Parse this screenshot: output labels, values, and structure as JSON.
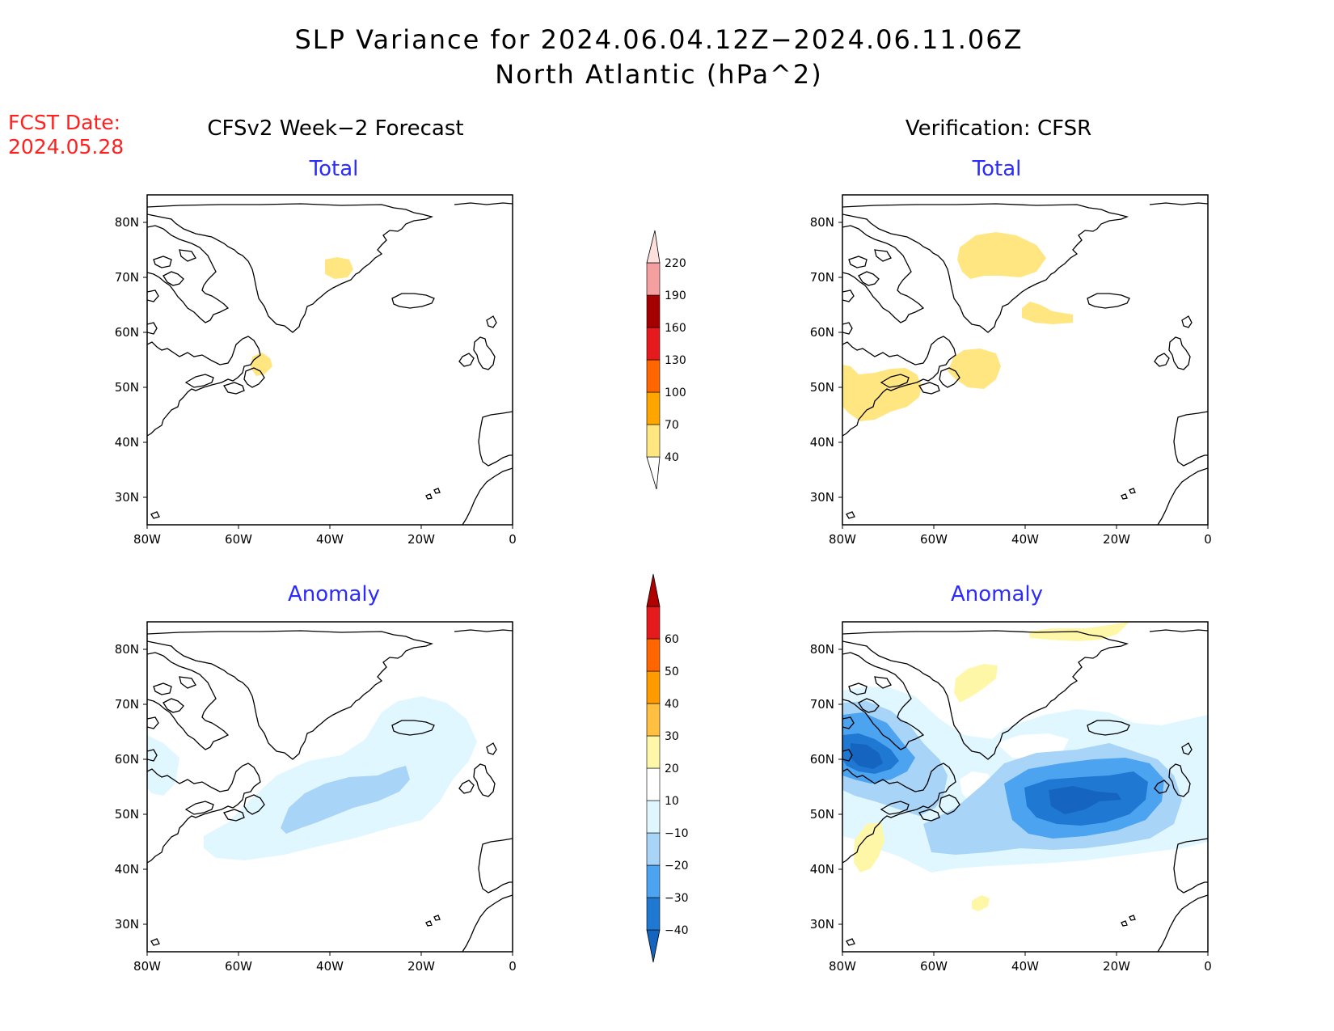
{
  "title": {
    "line1": "SLP Variance for 2024.06.04.12Z−2024.06.11.06Z",
    "line2": "North Atlantic (hPa^2)"
  },
  "fcst_date": {
    "label": "FCST Date:",
    "value": "2024.05.28"
  },
  "columns": {
    "left": "CFSv2 Week−2 Forecast",
    "right": "Verification: CFSR"
  },
  "panels": {
    "top_left": "Total",
    "top_right": "Total",
    "bottom_left": "Anomaly",
    "bottom_right": "Anomaly"
  },
  "axes": {
    "lat_labels": [
      "80N",
      "70N",
      "60N",
      "50N",
      "40N",
      "30N"
    ],
    "lon_labels": [
      "80W",
      "60W",
      "40W",
      "20W",
      "0"
    ]
  },
  "colorbar_total": {
    "levels": [
      "40",
      "70",
      "100",
      "130",
      "160",
      "190",
      "220"
    ],
    "colors": [
      "#ffe680",
      "#ffa500",
      "#ff6600",
      "#e41a1c",
      "#a50000",
      "#f4a0a0",
      "#fde0dc"
    ]
  },
  "colorbar_anomaly": {
    "levels": [
      "−40",
      "−30",
      "−20",
      "−10",
      "10",
      "20",
      "30",
      "40",
      "50",
      "60"
    ],
    "colors": [
      "#1565c0",
      "#1f78d1",
      "#4ca3f0",
      "#a8d4f8",
      "#e0f7ff",
      "#ffffff",
      "#fff7a8",
      "#ffbf40",
      "#ff9a00",
      "#ff6600",
      "#e41a1c",
      "#b00000"
    ]
  },
  "chart_data": [
    {
      "type": "heatmap",
      "panel": "CFSv2 Week−2 Forecast / Total",
      "xlabel": "",
      "ylabel": "",
      "xlim": [
        -80,
        0
      ],
      "ylim": [
        25,
        85
      ],
      "regions": [
        {
          "level": "40-70",
          "center": [
            -37,
            72
          ]
        },
        {
          "level": "40-70",
          "center": [
            -55,
            53
          ]
        }
      ]
    },
    {
      "type": "heatmap",
      "panel": "Verification: CFSR / Total",
      "xlim": [
        -80,
        0
      ],
      "ylim": [
        25,
        85
      ],
      "regions": [
        {
          "level": "40-70",
          "center": [
            -45,
            73
          ]
        },
        {
          "level": "40-70",
          "center": [
            -35,
            63
          ]
        },
        {
          "level": "40-70",
          "center": [
            -50,
            53
          ]
        },
        {
          "level": "40-70",
          "center": [
            -70,
            48
          ]
        }
      ]
    },
    {
      "type": "heatmap",
      "panel": "CFSv2 Week−2 Forecast / Anomaly",
      "xlim": [
        -80,
        0
      ],
      "ylim": [
        25,
        85
      ],
      "regions": [
        {
          "level": "-20 to -10",
          "center": [
            -40,
            55
          ]
        },
        {
          "level": "-30 to -20",
          "center": [
            -40,
            52
          ]
        }
      ]
    },
    {
      "type": "heatmap",
      "panel": "Verification: CFSR / Anomaly",
      "xlim": [
        -80,
        0
      ],
      "ylim": [
        25,
        85
      ],
      "regions": [
        {
          "level": "-20 to -10",
          "center": [
            -40,
            55
          ]
        },
        {
          "level": "-30 to -20",
          "center": [
            -30,
            52
          ]
        },
        {
          "level": "-40 to -30",
          "center": [
            -28,
            52
          ]
        },
        {
          "level": "below -40",
          "center": [
            -30,
            52
          ]
        },
        {
          "level": "-40 to -30",
          "center": [
            -75,
            60
          ]
        },
        {
          "level": "below -40",
          "center": [
            -75,
            58
          ]
        },
        {
          "level": "10 to 20",
          "center": [
            -45,
            77
          ]
        },
        {
          "level": "10 to 20",
          "center": [
            -75,
            43
          ]
        },
        {
          "level": "10 to 20",
          "center": [
            -50,
            33
          ]
        }
      ]
    }
  ]
}
